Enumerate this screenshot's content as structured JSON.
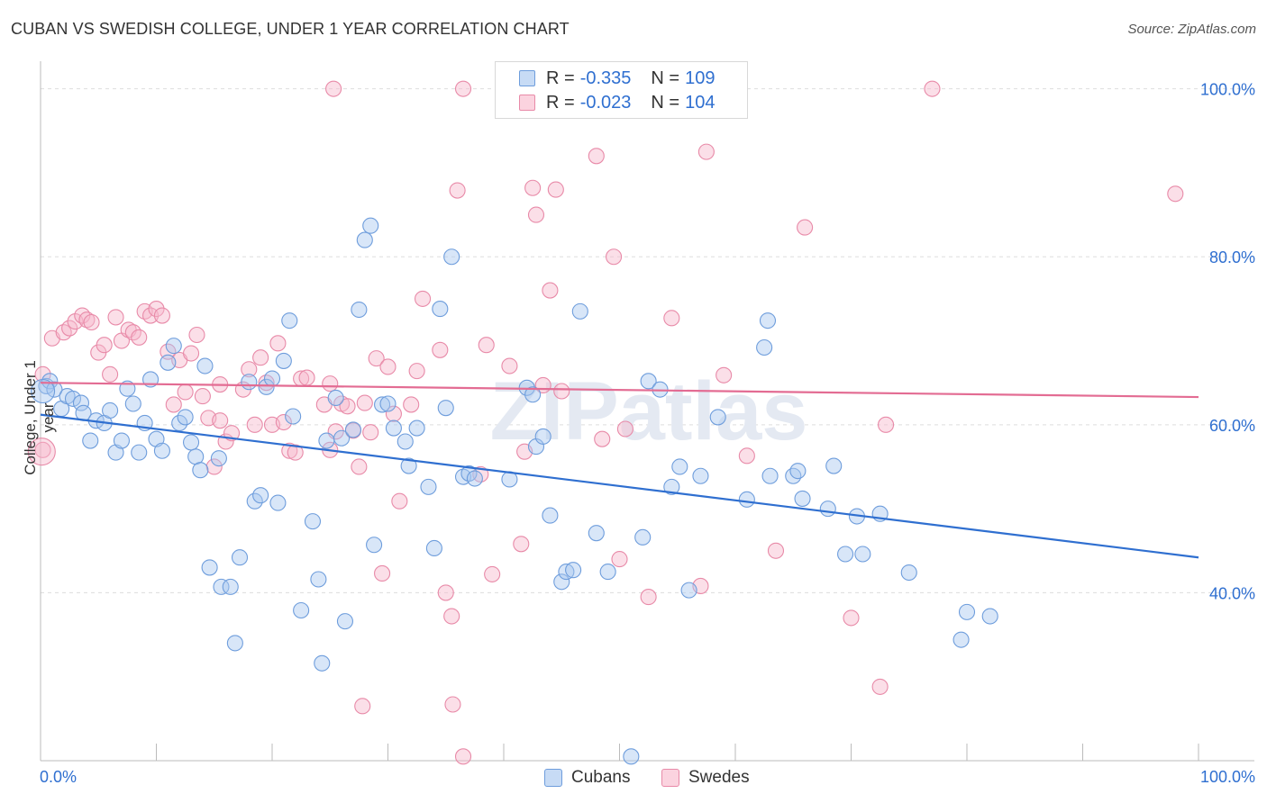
{
  "title": "CUBAN VS SWEDISH COLLEGE, UNDER 1 YEAR CORRELATION CHART",
  "source": "Source: ZipAtlas.com",
  "watermark": "ZIPatlas",
  "legend": {
    "items": [
      {
        "r_label": "R = ",
        "r_value": "-0.335",
        "n_label": "N = ",
        "n_value": "109",
        "color": "#a9c8f0"
      },
      {
        "r_label": "R = ",
        "r_value": "-0.023",
        "n_label": "N = ",
        "n_value": "104",
        "color": "#f7b8cb"
      }
    ]
  },
  "bottom_legend": {
    "cubans": "Cubans",
    "swedes": "Swedes"
  },
  "colors": {
    "blue_fill": "#a9c8f0",
    "blue_stroke": "#6e9ddc",
    "blue_line": "#2f6fd0",
    "pink_fill": "#f7b8cb",
    "pink_stroke": "#e88aa8",
    "pink_line": "#e36c93",
    "axis_text": "#2f6fd0",
    "grid": "#dddddd"
  },
  "chart_data": {
    "type": "scatter",
    "title": "CUBAN VS SWEDISH COLLEGE, UNDER 1 YEAR CORRELATION CHART",
    "xlabel": "",
    "ylabel": "College, Under 1 year",
    "xlim": [
      0,
      100
    ],
    "ylim": [
      20,
      102
    ],
    "x_tick_labels": [
      "0.0%",
      "100.0%"
    ],
    "y_ticks": [
      40,
      60,
      80,
      100
    ],
    "y_tick_labels": [
      "40.0%",
      "60.0%",
      "80.0%",
      "100.0%"
    ],
    "grid": true,
    "legend_position": "top-center",
    "series": [
      {
        "name": "Cubans",
        "r": -0.335,
        "n": 109,
        "trend": {
          "x": [
            0,
            100
          ],
          "y": [
            61.2,
            44.2
          ]
        },
        "points": [
          [
            0.5,
            64.6
          ],
          [
            0.8,
            65.2
          ],
          [
            1.2,
            64.2
          ],
          [
            1.8,
            61.9
          ],
          [
            2.3,
            63.4
          ],
          [
            2.8,
            63.1
          ],
          [
            3.5,
            62.6
          ],
          [
            3.7,
            61.4
          ],
          [
            4.3,
            58.1
          ],
          [
            4.8,
            60.5
          ],
          [
            5.5,
            60.2
          ],
          [
            6.0,
            61.7
          ],
          [
            6.5,
            56.7
          ],
          [
            7.0,
            58.1
          ],
          [
            7.5,
            64.3
          ],
          [
            8.0,
            62.5
          ],
          [
            8.5,
            56.7
          ],
          [
            9.0,
            60.2
          ],
          [
            9.5,
            65.4
          ],
          [
            10.0,
            58.3
          ],
          [
            10.5,
            56.9
          ],
          [
            11.0,
            67.4
          ],
          [
            11.5,
            69.4
          ],
          [
            12.0,
            60.2
          ],
          [
            12.5,
            60.9
          ],
          [
            13.0,
            57.9
          ],
          [
            13.4,
            56.2
          ],
          [
            13.8,
            54.6
          ],
          [
            14.2,
            67.0
          ],
          [
            14.6,
            43.0
          ],
          [
            15.4,
            56.0
          ],
          [
            15.6,
            40.7
          ],
          [
            16.4,
            40.7
          ],
          [
            16.8,
            34.0
          ],
          [
            17.2,
            44.2
          ],
          [
            18.0,
            65.1
          ],
          [
            18.5,
            50.9
          ],
          [
            19.0,
            51.6
          ],
          [
            19.5,
            64.5
          ],
          [
            20.0,
            65.5
          ],
          [
            20.5,
            50.7
          ],
          [
            21.0,
            67.6
          ],
          [
            21.5,
            72.4
          ],
          [
            21.8,
            61.0
          ],
          [
            22.5,
            37.9
          ],
          [
            23.5,
            48.5
          ],
          [
            24.0,
            41.6
          ],
          [
            24.3,
            31.6
          ],
          [
            24.7,
            58.1
          ],
          [
            25.5,
            63.2
          ],
          [
            26.0,
            58.4
          ],
          [
            26.3,
            36.6
          ],
          [
            27.0,
            59.4
          ],
          [
            27.5,
            73.7
          ],
          [
            28.0,
            82.0
          ],
          [
            28.5,
            83.7
          ],
          [
            28.8,
            45.7
          ],
          [
            29.5,
            62.4
          ],
          [
            30.0,
            62.5
          ],
          [
            30.5,
            59.6
          ],
          [
            31.5,
            58.0
          ],
          [
            31.8,
            55.1
          ],
          [
            32.5,
            59.6
          ],
          [
            33.5,
            52.6
          ],
          [
            34.0,
            45.3
          ],
          [
            34.5,
            73.8
          ],
          [
            35.0,
            62.0
          ],
          [
            35.5,
            80.0
          ],
          [
            36.5,
            53.8
          ],
          [
            37.0,
            54.2
          ],
          [
            37.5,
            53.6
          ],
          [
            40.5,
            53.5
          ],
          [
            42.0,
            64.4
          ],
          [
            42.5,
            63.6
          ],
          [
            42.8,
            57.4
          ],
          [
            43.4,
            58.6
          ],
          [
            44.0,
            49.2
          ],
          [
            45.0,
            41.3
          ],
          [
            45.4,
            42.5
          ],
          [
            46.0,
            42.7
          ],
          [
            46.6,
            73.5
          ],
          [
            48.0,
            47.1
          ],
          [
            49.0,
            42.5
          ],
          [
            52.0,
            46.6
          ],
          [
            52.5,
            65.2
          ],
          [
            53.5,
            64.2
          ],
          [
            54.5,
            52.6
          ],
          [
            55.2,
            55.0
          ],
          [
            56.0,
            40.3
          ],
          [
            57.0,
            53.9
          ],
          [
            58.5,
            60.9
          ],
          [
            61.0,
            51.1
          ],
          [
            62.5,
            69.2
          ],
          [
            62.8,
            72.4
          ],
          [
            63.0,
            53.9
          ],
          [
            65.0,
            53.9
          ],
          [
            65.4,
            54.5
          ],
          [
            65.8,
            51.2
          ],
          [
            68.0,
            50.0
          ],
          [
            68.5,
            55.1
          ],
          [
            69.5,
            44.6
          ],
          [
            70.5,
            49.1
          ],
          [
            71.0,
            44.6
          ],
          [
            72.5,
            49.4
          ],
          [
            75.0,
            42.4
          ],
          [
            79.5,
            34.4
          ],
          [
            80.0,
            37.7
          ],
          [
            82.0,
            37.2
          ],
          [
            51.0,
            20.5
          ]
        ]
      },
      {
        "name": "Swedes",
        "r": -0.023,
        "n": 104,
        "trend": {
          "x": [
            0,
            100
          ],
          "y": [
            65.0,
            63.3
          ]
        },
        "points": [
          [
            0.2,
            66.0
          ],
          [
            0.2,
            57.0
          ],
          [
            1.0,
            70.3
          ],
          [
            2.0,
            71.0
          ],
          [
            2.5,
            71.5
          ],
          [
            3.0,
            72.3
          ],
          [
            3.6,
            73.0
          ],
          [
            4.0,
            72.5
          ],
          [
            4.4,
            72.2
          ],
          [
            5.0,
            68.6
          ],
          [
            5.5,
            69.5
          ],
          [
            6.0,
            66.0
          ],
          [
            6.5,
            72.8
          ],
          [
            7.0,
            70.0
          ],
          [
            7.6,
            71.3
          ],
          [
            8.0,
            71.0
          ],
          [
            8.5,
            70.4
          ],
          [
            9.0,
            73.5
          ],
          [
            9.5,
            73.0
          ],
          [
            10.0,
            73.8
          ],
          [
            10.5,
            73.0
          ],
          [
            11.0,
            68.7
          ],
          [
            11.5,
            62.4
          ],
          [
            12.0,
            67.7
          ],
          [
            12.5,
            63.9
          ],
          [
            13.0,
            68.5
          ],
          [
            13.5,
            70.7
          ],
          [
            14.0,
            63.4
          ],
          [
            14.5,
            60.8
          ],
          [
            15.0,
            55.0
          ],
          [
            15.5,
            60.5
          ],
          [
            16.0,
            58.0
          ],
          [
            16.5,
            59.0
          ],
          [
            17.5,
            64.2
          ],
          [
            18.0,
            66.6
          ],
          [
            18.5,
            60.0
          ],
          [
            19.0,
            68.0
          ],
          [
            19.5,
            65.0
          ],
          [
            20.0,
            60.0
          ],
          [
            20.5,
            69.7
          ],
          [
            21.0,
            60.3
          ],
          [
            21.5,
            56.9
          ],
          [
            22.0,
            56.7
          ],
          [
            22.5,
            65.5
          ],
          [
            23.0,
            65.6
          ],
          [
            24.5,
            62.4
          ],
          [
            25.0,
            57.0
          ],
          [
            25.5,
            59.2
          ],
          [
            26.0,
            62.5
          ],
          [
            26.5,
            62.2
          ],
          [
            27.0,
            59.3
          ],
          [
            27.5,
            55.0
          ],
          [
            28.0,
            62.6
          ],
          [
            28.5,
            59.1
          ],
          [
            29.0,
            67.9
          ],
          [
            29.5,
            42.3
          ],
          [
            30.0,
            66.9
          ],
          [
            30.5,
            61.3
          ],
          [
            31.0,
            50.9
          ],
          [
            32.0,
            62.4
          ],
          [
            32.5,
            66.4
          ],
          [
            33.0,
            75.0
          ],
          [
            34.5,
            68.9
          ],
          [
            35.0,
            40.0
          ],
          [
            35.5,
            37.2
          ],
          [
            35.6,
            26.7
          ],
          [
            36.0,
            87.9
          ],
          [
            36.5,
            20.5
          ],
          [
            38.0,
            54.1
          ],
          [
            38.5,
            69.5
          ],
          [
            39.0,
            42.2
          ],
          [
            40.5,
            67.0
          ],
          [
            41.5,
            45.8
          ],
          [
            41.8,
            56.8
          ],
          [
            42.5,
            88.2
          ],
          [
            42.8,
            85.0
          ],
          [
            43.4,
            64.7
          ],
          [
            44.0,
            76.0
          ],
          [
            44.5,
            88.0
          ],
          [
            45.0,
            64.0
          ],
          [
            46.5,
            100.0
          ],
          [
            48.0,
            92.0
          ],
          [
            48.5,
            58.3
          ],
          [
            49.5,
            80.0
          ],
          [
            50.0,
            44.0
          ],
          [
            50.5,
            59.5
          ],
          [
            52.5,
            39.5
          ],
          [
            54.5,
            72.7
          ],
          [
            57.0,
            40.8
          ],
          [
            57.5,
            92.5
          ],
          [
            59.0,
            65.9
          ],
          [
            61.0,
            56.3
          ],
          [
            63.5,
            45.0
          ],
          [
            66.0,
            83.5
          ],
          [
            70.0,
            37.0
          ],
          [
            72.5,
            28.8
          ],
          [
            73.0,
            60.0
          ],
          [
            77.0,
            100.0
          ],
          [
            98.0,
            87.5
          ],
          [
            25.3,
            100.0
          ],
          [
            36.5,
            100.0
          ],
          [
            15.5,
            64.8
          ],
          [
            27.8,
            26.5
          ],
          [
            25.0,
            64.9
          ]
        ]
      }
    ]
  }
}
